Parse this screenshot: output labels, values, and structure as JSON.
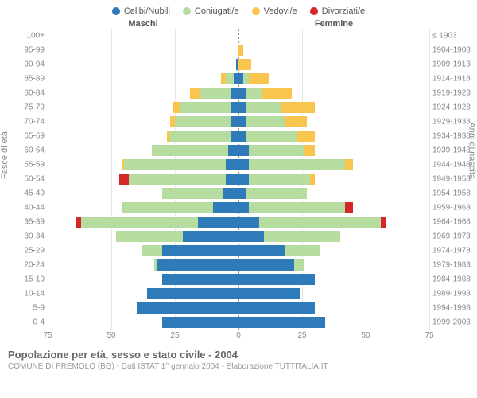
{
  "legend": [
    {
      "label": "Celibi/Nubili",
      "color": "#2f7ab8"
    },
    {
      "label": "Coniugati/e",
      "color": "#b7dca0"
    },
    {
      "label": "Vedovi/e",
      "color": "#f9c54e"
    },
    {
      "label": "Divorziati/e",
      "color": "#d62728"
    }
  ],
  "headers": {
    "male": "Maschi",
    "female": "Femmine"
  },
  "ylabel_left": "Fasce di età",
  "ylabel_right": "Anni di nascita",
  "xmax": 75,
  "xticks": [
    75,
    50,
    25,
    0,
    25,
    50,
    75
  ],
  "title": "Popolazione per età, sesso e stato civile - 2004",
  "subtitle": "COMUNE DI PREMOLO (BG) - Dati ISTAT 1° gennaio 2004 - Elaborazione TUTTITALIA.IT",
  "rows": [
    {
      "age": "100+",
      "year": "≤ 1903",
      "m": {
        "c": 0,
        "co": 0,
        "v": 0,
        "d": 0
      },
      "f": {
        "c": 0,
        "co": 0,
        "v": 0,
        "d": 0
      }
    },
    {
      "age": "95-99",
      "year": "1904-1908",
      "m": {
        "c": 0,
        "co": 0,
        "v": 0,
        "d": 0
      },
      "f": {
        "c": 0,
        "co": 0,
        "v": 2,
        "d": 0
      }
    },
    {
      "age": "90-94",
      "year": "1909-1913",
      "m": {
        "c": 1,
        "co": 0,
        "v": 0,
        "d": 0
      },
      "f": {
        "c": 0,
        "co": 0,
        "v": 5,
        "d": 0
      }
    },
    {
      "age": "85-89",
      "year": "1914-1918",
      "m": {
        "c": 2,
        "co": 3,
        "v": 2,
        "d": 0
      },
      "f": {
        "c": 2,
        "co": 2,
        "v": 8,
        "d": 0
      }
    },
    {
      "age": "80-84",
      "year": "1919-1923",
      "m": {
        "c": 3,
        "co": 12,
        "v": 4,
        "d": 0
      },
      "f": {
        "c": 3,
        "co": 6,
        "v": 12,
        "d": 0
      }
    },
    {
      "age": "75-79",
      "year": "1924-1928",
      "m": {
        "c": 3,
        "co": 20,
        "v": 3,
        "d": 0
      },
      "f": {
        "c": 3,
        "co": 14,
        "v": 13,
        "d": 0
      }
    },
    {
      "age": "70-74",
      "year": "1929-1933",
      "m": {
        "c": 3,
        "co": 22,
        "v": 2,
        "d": 0
      },
      "f": {
        "c": 3,
        "co": 15,
        "v": 9,
        "d": 0
      }
    },
    {
      "age": "65-69",
      "year": "1934-1938",
      "m": {
        "c": 3,
        "co": 24,
        "v": 1,
        "d": 0
      },
      "f": {
        "c": 3,
        "co": 20,
        "v": 7,
        "d": 0
      }
    },
    {
      "age": "60-64",
      "year": "1939-1943",
      "m": {
        "c": 4,
        "co": 30,
        "v": 0,
        "d": 0
      },
      "f": {
        "c": 4,
        "co": 22,
        "v": 4,
        "d": 0
      }
    },
    {
      "age": "55-59",
      "year": "1944-1948",
      "m": {
        "c": 5,
        "co": 40,
        "v": 1,
        "d": 0
      },
      "f": {
        "c": 4,
        "co": 38,
        "v": 3,
        "d": 0
      }
    },
    {
      "age": "50-54",
      "year": "1949-1953",
      "m": {
        "c": 5,
        "co": 38,
        "v": 0,
        "d": 4
      },
      "f": {
        "c": 4,
        "co": 24,
        "v": 2,
        "d": 0
      }
    },
    {
      "age": "45-49",
      "year": "1954-1958",
      "m": {
        "c": 6,
        "co": 24,
        "v": 0,
        "d": 0
      },
      "f": {
        "c": 3,
        "co": 24,
        "v": 0,
        "d": 0
      }
    },
    {
      "age": "40-44",
      "year": "1959-1963",
      "m": {
        "c": 10,
        "co": 36,
        "v": 0,
        "d": 0
      },
      "f": {
        "c": 4,
        "co": 38,
        "v": 0,
        "d": 3
      }
    },
    {
      "age": "35-39",
      "year": "1964-1968",
      "m": {
        "c": 16,
        "co": 46,
        "v": 0,
        "d": 2
      },
      "f": {
        "c": 8,
        "co": 48,
        "v": 0,
        "d": 2
      }
    },
    {
      "age": "30-34",
      "year": "1969-1973",
      "m": {
        "c": 22,
        "co": 26,
        "v": 0,
        "d": 0
      },
      "f": {
        "c": 10,
        "co": 30,
        "v": 0,
        "d": 0
      }
    },
    {
      "age": "25-29",
      "year": "1974-1978",
      "m": {
        "c": 30,
        "co": 8,
        "v": 0,
        "d": 0
      },
      "f": {
        "c": 18,
        "co": 14,
        "v": 0,
        "d": 0
      }
    },
    {
      "age": "20-24",
      "year": "1979-1983",
      "m": {
        "c": 32,
        "co": 1,
        "v": 0,
        "d": 0
      },
      "f": {
        "c": 22,
        "co": 4,
        "v": 0,
        "d": 0
      }
    },
    {
      "age": "15-19",
      "year": "1984-1988",
      "m": {
        "c": 30,
        "co": 0,
        "v": 0,
        "d": 0
      },
      "f": {
        "c": 30,
        "co": 0,
        "v": 0,
        "d": 0
      }
    },
    {
      "age": "10-14",
      "year": "1989-1993",
      "m": {
        "c": 36,
        "co": 0,
        "v": 0,
        "d": 0
      },
      "f": {
        "c": 24,
        "co": 0,
        "v": 0,
        "d": 0
      }
    },
    {
      "age": "5-9",
      "year": "1994-1998",
      "m": {
        "c": 40,
        "co": 0,
        "v": 0,
        "d": 0
      },
      "f": {
        "c": 30,
        "co": 0,
        "v": 0,
        "d": 0
      }
    },
    {
      "age": "0-4",
      "year": "1999-2003",
      "m": {
        "c": 30,
        "co": 0,
        "v": 0,
        "d": 0
      },
      "f": {
        "c": 34,
        "co": 0,
        "v": 0,
        "d": 0
      }
    }
  ]
}
